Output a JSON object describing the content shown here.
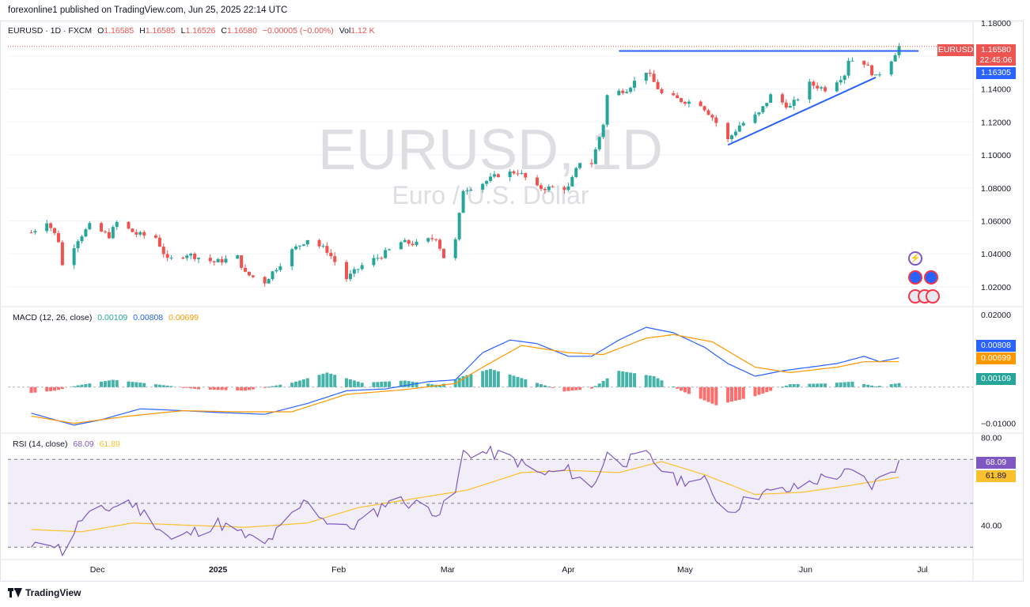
{
  "published": "forexonline1 published on TradingView.com, Jun 25, 2025 22:14 UTC",
  "legend": {
    "symbol": "EURUSD · 1D · FXCM",
    "o_label": "O",
    "o": "1.16585",
    "h_label": "H",
    "h": "1.16585",
    "l_label": "L",
    "l": "1.16526",
    "c_label": "C",
    "c": "1.16580",
    "change": "−0.00005 (−0.00%)",
    "vol_label": "Vol",
    "vol": "1.12 K"
  },
  "watermark": {
    "main": "EURUSD, 1D",
    "sub": "Euro / U.S. Dollar"
  },
  "price_tags": {
    "symbol": "EURUSD",
    "last": "1.16580",
    "countdown": "22:45:06",
    "level": "1.16305"
  },
  "macd_legend": {
    "title": "MACD (12, 26, close)",
    "hist": "0.00109",
    "macd": "0.00808",
    "signal": "0.00699"
  },
  "rsi_legend": {
    "title": "RSI (14, close)",
    "rsi": "68.09",
    "ma": "61.89"
  },
  "footer": {
    "brand": "TradingView"
  },
  "colors": {
    "up": "#26a69a",
    "down": "#ef5350",
    "trend": "#2962ff",
    "macd": "#2962ff",
    "signal": "#ff9800",
    "rsi": "#7e57c2",
    "rsi_ma": "#fbc02d"
  },
  "icons": [
    "lightning-icon",
    "calendar-event-icon",
    "flag-event-icon"
  ],
  "chart_data": [
    {
      "type": "candlestick",
      "title": "",
      "x_tick_labels": [
        "Dec",
        "2025",
        "Feb",
        "Mar",
        "Apr",
        "May",
        "Jun",
        "Jul"
      ],
      "y_ticks": [
        1.02,
        1.04,
        1.06,
        1.08,
        1.1,
        1.12,
        1.14,
        1.16,
        1.18
      ],
      "y_tick_labels": [
        "1.02000",
        "1.04000",
        "1.06000",
        "1.08000",
        "1.10000",
        "1.12000",
        "1.14000",
        "1.18000"
      ],
      "ylim": [
        1.008,
        1.181
      ],
      "close_path": [
        [
          "2024-11-14",
          1.053
        ],
        [
          "2024-11-18",
          1.06
        ],
        [
          "2024-11-21",
          1.048
        ],
        [
          "2024-11-22",
          1.033
        ],
        [
          "2024-11-26",
          1.049
        ],
        [
          "2024-11-29",
          1.057
        ],
        [
          "2024-12-04",
          1.051
        ],
        [
          "2024-12-06",
          1.059
        ],
        [
          "2024-12-11",
          1.052
        ],
        [
          "2024-12-16",
          1.05
        ],
        [
          "2024-12-19",
          1.036
        ],
        [
          "2024-12-24",
          1.04
        ],
        [
          "2024-12-31",
          1.035
        ],
        [
          "2025-01-06",
          1.038
        ],
        [
          "2025-01-08",
          1.028
        ],
        [
          "2025-01-13",
          1.023
        ],
        [
          "2025-01-15",
          1.029
        ],
        [
          "2025-01-20",
          1.042
        ],
        [
          "2025-01-24",
          1.049
        ],
        [
          "2025-01-29",
          1.042
        ],
        [
          "2025-02-03",
          1.025
        ],
        [
          "2025-02-07",
          1.033
        ],
        [
          "2025-02-12",
          1.039
        ],
        [
          "2025-02-17",
          1.047
        ],
        [
          "2025-02-21",
          1.046
        ],
        [
          "2025-02-26",
          1.05
        ],
        [
          "2025-02-28",
          1.038
        ],
        [
          "2025-03-03",
          1.048
        ],
        [
          "2025-03-05",
          1.079
        ],
        [
          "2025-03-10",
          1.083
        ],
        [
          "2025-03-14",
          1.088
        ],
        [
          "2025-03-19",
          1.09
        ],
        [
          "2025-03-24",
          1.08
        ],
        [
          "2025-03-27",
          1.08
        ],
        [
          "2025-04-01",
          1.08
        ],
        [
          "2025-04-04",
          1.096
        ],
        [
          "2025-04-07",
          1.095
        ],
        [
          "2025-04-10",
          1.119
        ],
        [
          "2025-04-11",
          1.136
        ],
        [
          "2025-04-16",
          1.14
        ],
        [
          "2025-04-21",
          1.151
        ],
        [
          "2025-04-25",
          1.137
        ],
        [
          "2025-04-30",
          1.133
        ],
        [
          "2025-05-05",
          1.131
        ],
        [
          "2025-05-08",
          1.123
        ],
        [
          "2025-05-12",
          1.109
        ],
        [
          "2025-05-15",
          1.118
        ],
        [
          "2025-05-20",
          1.125
        ],
        [
          "2025-05-23",
          1.136
        ],
        [
          "2025-05-28",
          1.129
        ],
        [
          "2025-06-02",
          1.143
        ],
        [
          "2025-06-06",
          1.14
        ],
        [
          "2025-06-11",
          1.149
        ],
        [
          "2025-06-12",
          1.158
        ],
        [
          "2025-06-16",
          1.156
        ],
        [
          "2025-06-19",
          1.147
        ],
        [
          "2025-06-23",
          1.158
        ],
        [
          "2025-06-25",
          1.1658
        ]
      ],
      "horizontal_line": {
        "value": 1.16305,
        "from": "2025-04-14",
        "to": "2025-06-30"
      },
      "trendline": {
        "from": [
          "2025-05-12",
          1.106
        ],
        "to": [
          "2025-06-19",
          1.147
        ]
      }
    },
    {
      "type": "line",
      "title": "MACD (12, 26, close)",
      "y_tick_labels": [
        "0.02000",
        "−0.01000"
      ],
      "ylim": [
        -0.0127,
        0.0222
      ],
      "series": [
        {
          "name": "MACD",
          "points": [
            [
              "2024-11-14",
              -0.0072
            ],
            [
              "2024-11-25",
              -0.0105
            ],
            [
              "2024-12-02",
              -0.009
            ],
            [
              "2024-12-12",
              -0.006
            ],
            [
              "2024-12-23",
              -0.0065
            ],
            [
              "2025-01-01",
              -0.007
            ],
            [
              "2025-01-13",
              -0.0075
            ],
            [
              "2025-01-24",
              -0.0045
            ],
            [
              "2025-02-03",
              -0.001
            ],
            [
              "2025-02-13",
              -0.0005
            ],
            [
              "2025-02-24",
              0.0015
            ],
            [
              "2025-03-03",
              0.002
            ],
            [
              "2025-03-10",
              0.0095
            ],
            [
              "2025-03-17",
              0.013
            ],
            [
              "2025-03-24",
              0.012
            ],
            [
              "2025-04-01",
              0.0085
            ],
            [
              "2025-04-07",
              0.0085
            ],
            [
              "2025-04-14",
              0.013
            ],
            [
              "2025-04-21",
              0.0165
            ],
            [
              "2025-04-28",
              0.015
            ],
            [
              "2025-05-06",
              0.011
            ],
            [
              "2025-05-12",
              0.0065
            ],
            [
              "2025-05-19",
              0.003
            ],
            [
              "2025-05-26",
              0.0045
            ],
            [
              "2025-06-02",
              0.0055
            ],
            [
              "2025-06-09",
              0.0065
            ],
            [
              "2025-06-16",
              0.0085
            ],
            [
              "2025-06-20",
              0.007
            ],
            [
              "2025-06-25",
              0.0081
            ]
          ]
        },
        {
          "name": "Signal",
          "points": [
            [
              "2024-11-14",
              -0.008
            ],
            [
              "2024-11-25",
              -0.01
            ],
            [
              "2024-12-09",
              -0.008
            ],
            [
              "2024-12-23",
              -0.0065
            ],
            [
              "2025-01-06",
              -0.0068
            ],
            [
              "2025-01-20",
              -0.0068
            ],
            [
              "2025-02-03",
              -0.002
            ],
            [
              "2025-02-17",
              -0.0008
            ],
            [
              "2025-03-03",
              0.001
            ],
            [
              "2025-03-10",
              0.0055
            ],
            [
              "2025-03-20",
              0.0115
            ],
            [
              "2025-04-01",
              0.0095
            ],
            [
              "2025-04-10",
              0.009
            ],
            [
              "2025-04-21",
              0.0135
            ],
            [
              "2025-04-28",
              0.0145
            ],
            [
              "2025-05-08",
              0.0125
            ],
            [
              "2025-05-19",
              0.0055
            ],
            [
              "2025-05-28",
              0.004
            ],
            [
              "2025-06-09",
              0.0055
            ],
            [
              "2025-06-16",
              0.007
            ],
            [
              "2025-06-25",
              0.007
            ]
          ]
        }
      ],
      "histogram_points": [
        [
          "2024-11-14",
          -0.0016
        ],
        [
          "2024-11-20",
          -0.001
        ],
        [
          "2024-11-26",
          0.0005
        ],
        [
          "2024-12-05",
          0.002
        ],
        [
          "2024-12-16",
          0.0008
        ],
        [
          "2024-12-27",
          -0.0006
        ],
        [
          "2025-01-08",
          -0.001
        ],
        [
          "2025-01-20",
          0.0012
        ],
        [
          "2025-01-29",
          0.004
        ],
        [
          "2025-02-07",
          0.0012
        ],
        [
          "2025-02-18",
          0.0018
        ],
        [
          "2025-02-27",
          0.0005
        ],
        [
          "2025-03-05",
          0.003
        ],
        [
          "2025-03-12",
          0.005
        ],
        [
          "2025-03-20",
          0.0025
        ],
        [
          "2025-03-31",
          -0.0012
        ],
        [
          "2025-04-07",
          -0.0004
        ],
        [
          "2025-04-14",
          0.0045
        ],
        [
          "2025-04-23",
          0.003
        ],
        [
          "2025-04-30",
          -0.001
        ],
        [
          "2025-05-09",
          -0.005
        ],
        [
          "2025-05-19",
          -0.0025
        ],
        [
          "2025-05-28",
          0.0008
        ],
        [
          "2025-06-06",
          0.001
        ],
        [
          "2025-06-13",
          0.0015
        ],
        [
          "2025-06-19",
          0.0002
        ],
        [
          "2025-06-25",
          0.0011
        ]
      ]
    },
    {
      "type": "line",
      "title": "RSI (14, close)",
      "y_tick_labels": [
        "80.00",
        "40.00"
      ],
      "ylim": [
        24.3,
        82.0
      ],
      "series": [
        {
          "name": "RSI",
          "points": [
            [
              "2024-11-14",
              29
            ],
            [
              "2024-11-19",
              33
            ],
            [
              "2024-11-22",
              28
            ],
            [
              "2024-11-27",
              43
            ],
            [
              "2024-12-03",
              47
            ],
            [
              "2024-12-09",
              51
            ],
            [
              "2024-12-16",
              41
            ],
            [
              "2024-12-20",
              33
            ],
            [
              "2025-01-01",
              41
            ],
            [
              "2025-01-08",
              35
            ],
            [
              "2025-01-13",
              31
            ],
            [
              "2025-01-20",
              44
            ],
            [
              "2025-01-24",
              52
            ],
            [
              "2025-01-28",
              43
            ],
            [
              "2025-02-03",
              38
            ],
            [
              "2025-02-10",
              45
            ],
            [
              "2025-02-14",
              52
            ],
            [
              "2025-02-20",
              50
            ],
            [
              "2025-02-27",
              46
            ],
            [
              "2025-03-03",
              55
            ],
            [
              "2025-03-05",
              73
            ],
            [
              "2025-03-12",
              73
            ],
            [
              "2025-03-18",
              70
            ],
            [
              "2025-03-25",
              63
            ],
            [
              "2025-04-01",
              65
            ],
            [
              "2025-04-07",
              57
            ],
            [
              "2025-04-11",
              72
            ],
            [
              "2025-04-16",
              69
            ],
            [
              "2025-04-21",
              72
            ],
            [
              "2025-04-28",
              61
            ],
            [
              "2025-05-06",
              60
            ],
            [
              "2025-05-12",
              46
            ],
            [
              "2025-05-19",
              54
            ],
            [
              "2025-05-28",
              56
            ],
            [
              "2025-06-06",
              62
            ],
            [
              "2025-06-13",
              64
            ],
            [
              "2025-06-18",
              58
            ],
            [
              "2025-06-25",
              68.09
            ]
          ]
        },
        {
          "name": "RSI MA",
          "points": [
            [
              "2024-11-14",
              38
            ],
            [
              "2024-11-27",
              37
            ],
            [
              "2024-12-10",
              41
            ],
            [
              "2024-12-24",
              40
            ],
            [
              "2025-01-08",
              39
            ],
            [
              "2025-01-24",
              41
            ],
            [
              "2025-02-06",
              48
            ],
            [
              "2025-02-20",
              52
            ],
            [
              "2025-03-06",
              56
            ],
            [
              "2025-03-20",
              64
            ],
            [
              "2025-04-01",
              65
            ],
            [
              "2025-04-14",
              64
            ],
            [
              "2025-04-25",
              69
            ],
            [
              "2025-05-06",
              63
            ],
            [
              "2025-05-19",
              54
            ],
            [
              "2025-05-31",
              55
            ],
            [
              "2025-06-12",
              58
            ],
            [
              "2025-06-25",
              61.89
            ]
          ]
        }
      ],
      "bands": [
        70,
        50,
        30
      ]
    }
  ]
}
